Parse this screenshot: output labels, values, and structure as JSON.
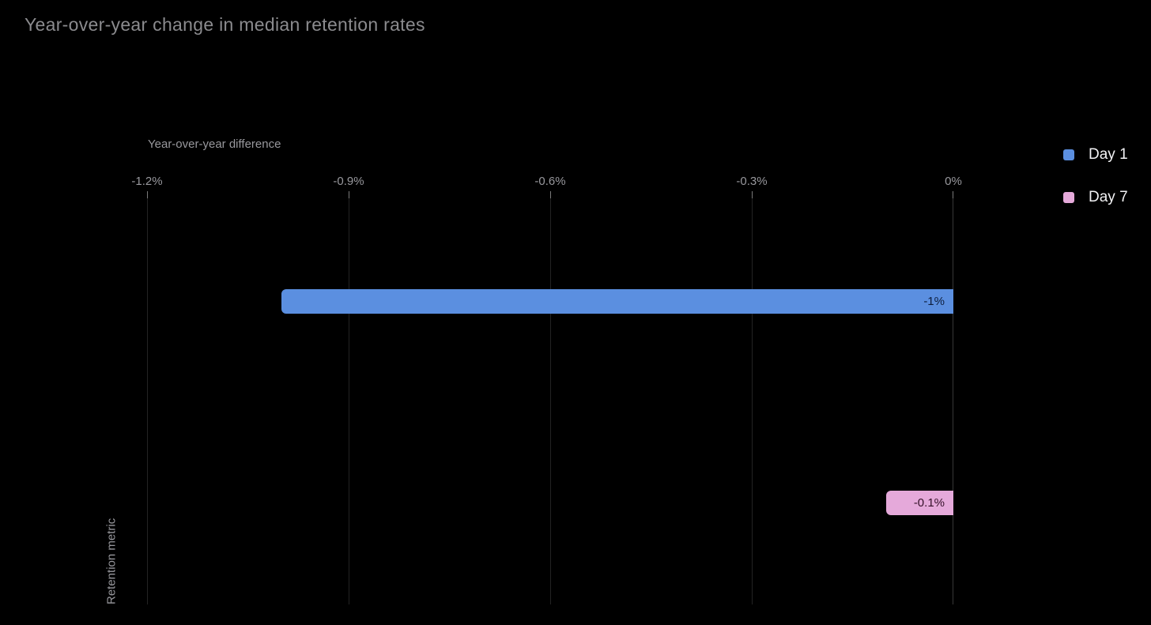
{
  "header": {
    "title": "Year-over-year change in median retention rates"
  },
  "chart_data": {
    "type": "bar",
    "orientation": "horizontal",
    "title": "Year-over-year change in median retention rates",
    "xlabel": "Year-over-year difference",
    "ylabel": "Retention metric",
    "categories": [
      "Day 1",
      "Day 7"
    ],
    "series": [
      {
        "name": "Day 1",
        "value": -1.0,
        "label": "-1%",
        "color": "#5b8fe0",
        "label_color": "#0e1e3d"
      },
      {
        "name": "Day 7",
        "value": -0.1,
        "label": "-0.1%",
        "color": "#e5a9da",
        "label_color": "#341028"
      }
    ],
    "xlim": [
      -1.2,
      0
    ],
    "x_ticks": [
      {
        "label": "-1.2%",
        "value": -1.2
      },
      {
        "label": "-0.9%",
        "value": -0.9
      },
      {
        "label": "-0.6%",
        "value": -0.6
      },
      {
        "label": "-0.3%",
        "value": -0.3
      },
      {
        "label": "0%",
        "value": 0
      }
    ],
    "grid": true,
    "legend_position": "right-top"
  },
  "legend": {
    "items": [
      {
        "label": "Day 1",
        "color": "#5b8fe0"
      },
      {
        "label": "Day 7",
        "color": "#e5a9da"
      }
    ]
  },
  "colors": {
    "background": "#000000",
    "title_text": "#8b8b8e",
    "axis_text": "#98989d",
    "gridline": "#232323",
    "zero_line": "#383838",
    "tick_mark": "#7a7a7a",
    "legend_text": "#f2f2f4"
  }
}
